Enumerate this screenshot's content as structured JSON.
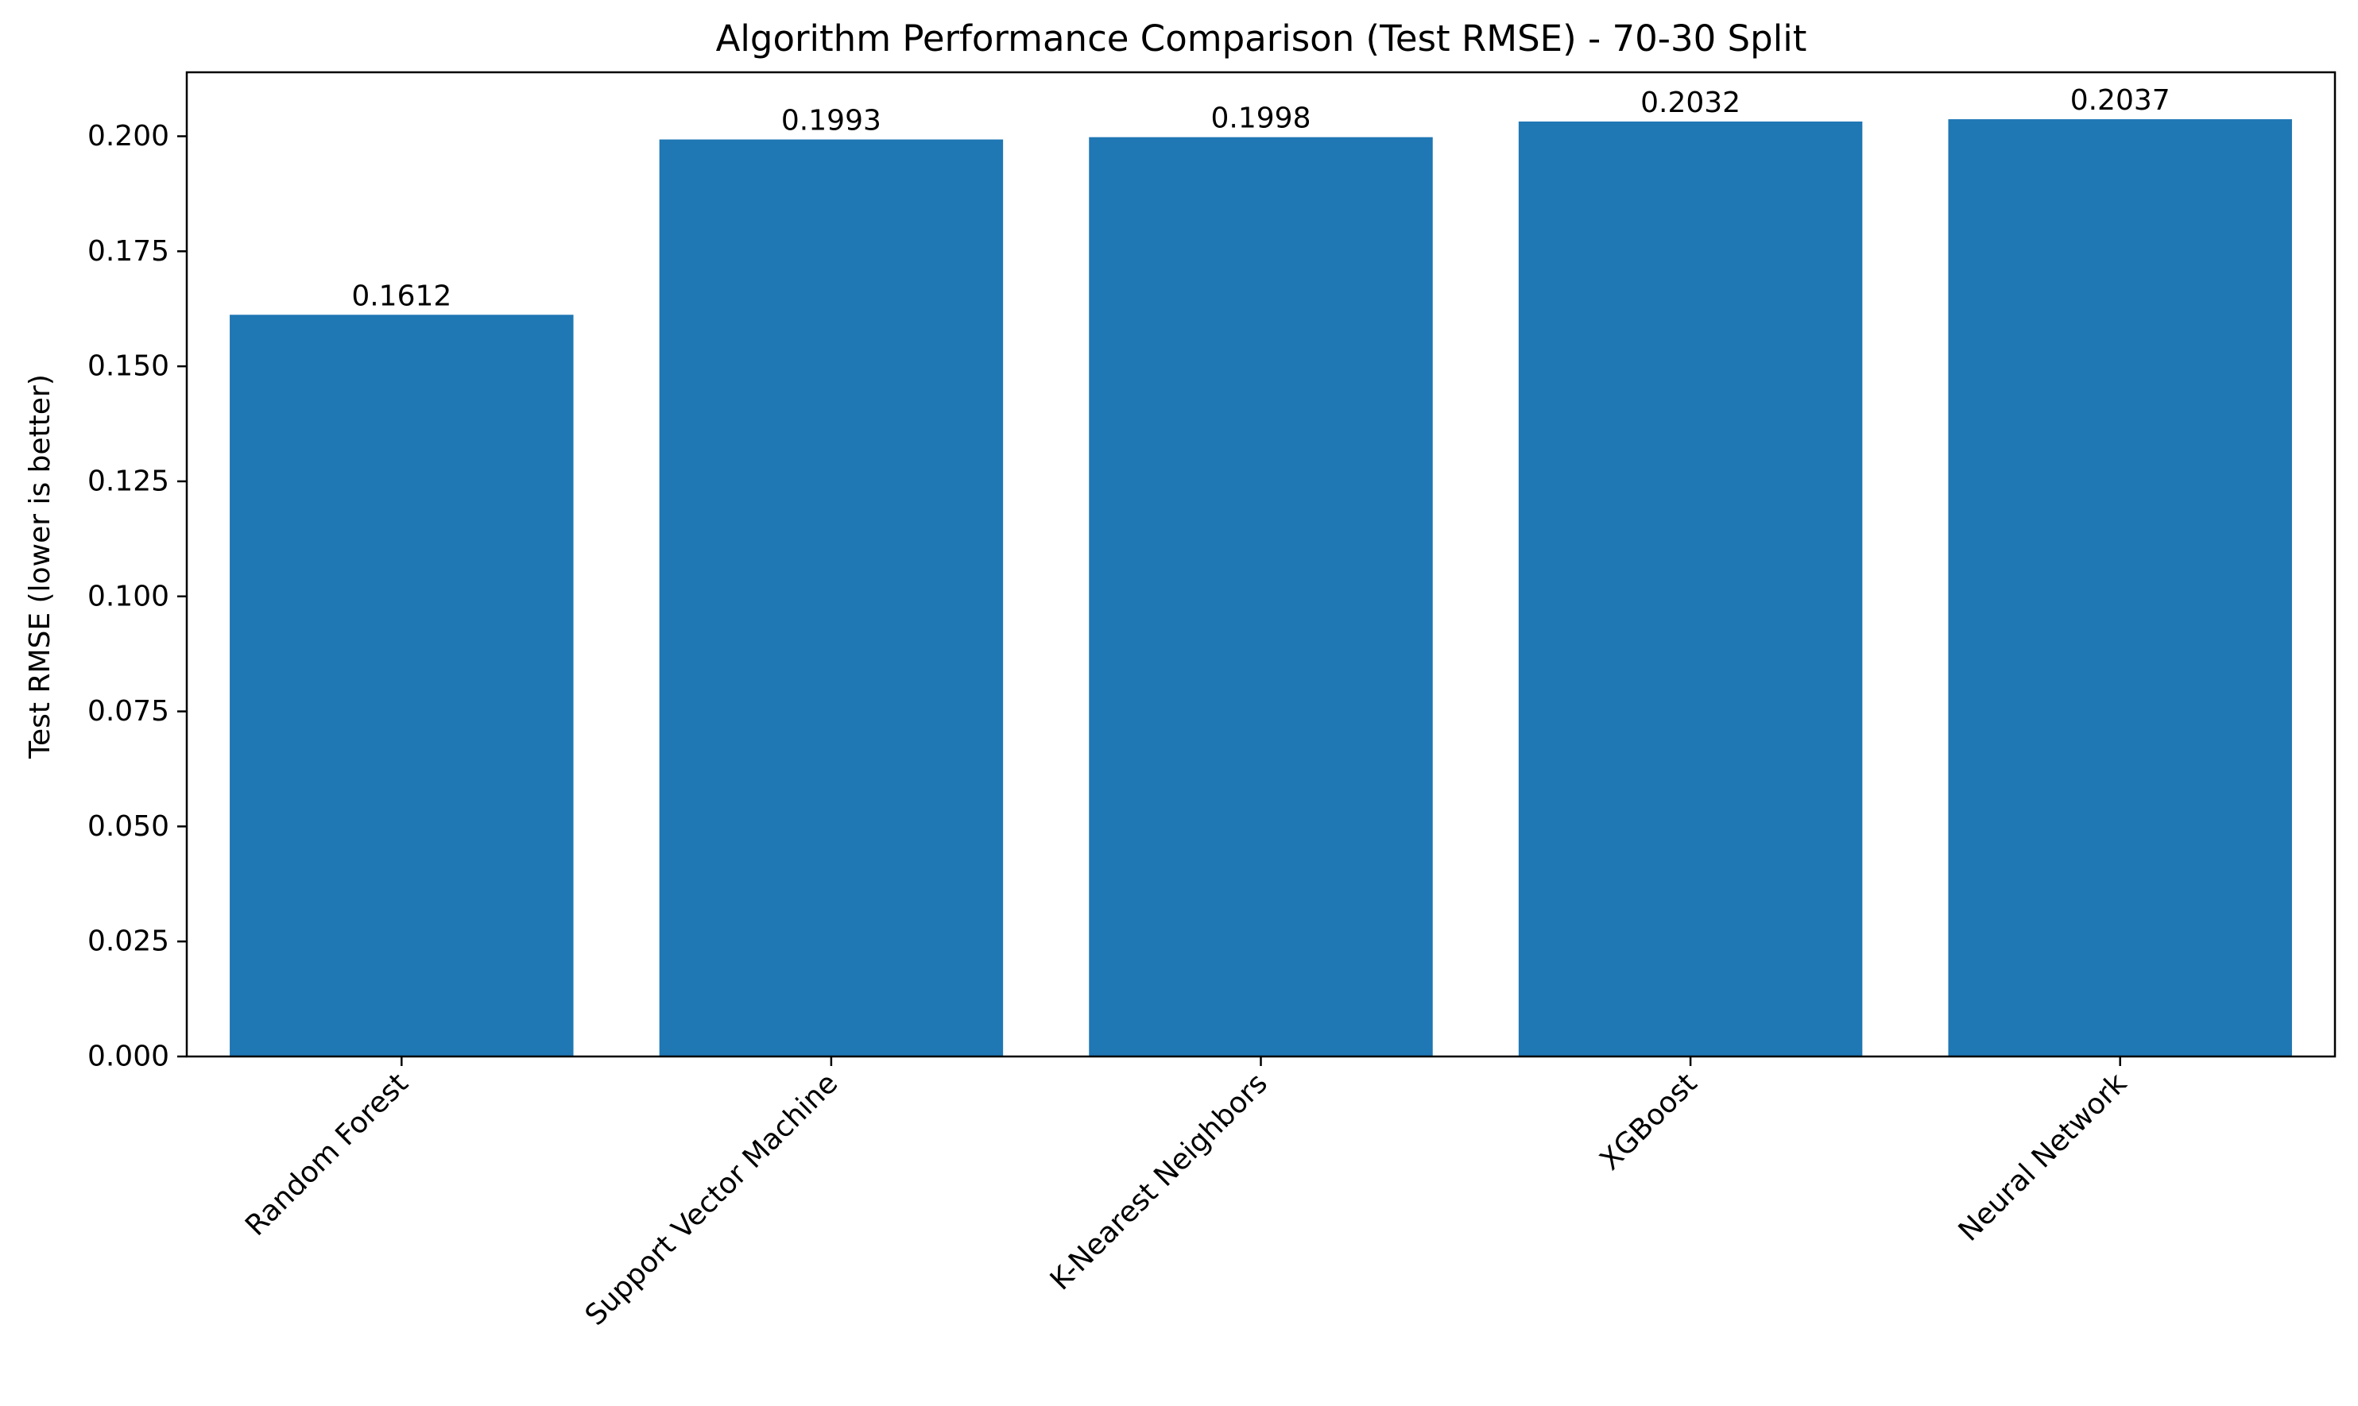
{
  "chart_data": {
    "type": "bar",
    "title": "Algorithm Performance Comparison (Test RMSE) - 70-30 Split",
    "xlabel": "",
    "ylabel": "Test RMSE (lower is better)",
    "categories": [
      "Random Forest",
      "Support Vector Machine",
      "K-Nearest Neighbors",
      "XGBoost",
      "Neural Network"
    ],
    "values": [
      0.1612,
      0.1993,
      0.1998,
      0.2032,
      0.2037
    ],
    "value_labels": [
      "0.1612",
      "0.1993",
      "0.1998",
      "0.2032",
      "0.2037"
    ],
    "yticks": [
      0.0,
      0.025,
      0.05,
      0.075,
      0.1,
      0.125,
      0.15,
      0.175,
      0.2
    ],
    "ytick_labels": [
      "0.000",
      "0.025",
      "0.050",
      "0.075",
      "0.100",
      "0.125",
      "0.150",
      "0.175",
      "0.200"
    ],
    "ylim": [
      0,
      0.2139
    ],
    "grid": false,
    "legend": "none",
    "bar_color": "#1f77b4",
    "xtick_rotation_deg": 45
  }
}
